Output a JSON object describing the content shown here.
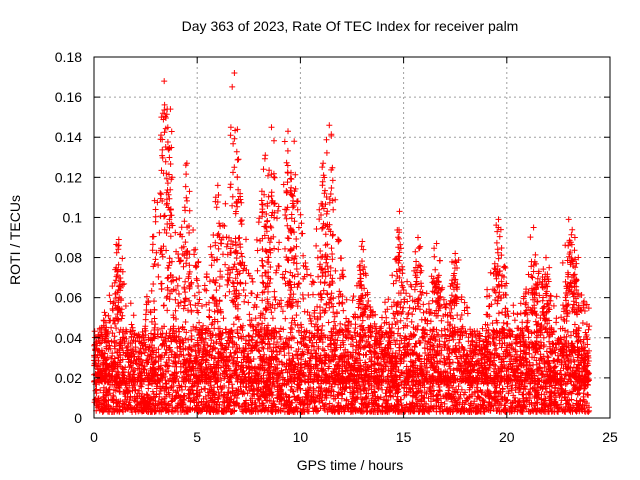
{
  "chart_data": {
    "type": "scatter",
    "title": "Day 363 of 2023, Rate Of TEC Index for receiver palm",
    "xlabel": "GPS time / hours",
    "ylabel": "ROTI / TECUs",
    "xlim": [
      0,
      25
    ],
    "ylim": [
      0,
      0.18
    ],
    "xticks": [
      0,
      5,
      10,
      15,
      20,
      25
    ],
    "xtick_labels": [
      "0",
      "5",
      "10",
      "15",
      "20",
      "25"
    ],
    "yticks": [
      0,
      0.02,
      0.04,
      0.06,
      0.08,
      0.1,
      0.12,
      0.14,
      0.16,
      0.18
    ],
    "ytick_labels": [
      "0",
      "0.02",
      "0.04",
      "0.06",
      "0.08",
      "0.1",
      "0.12",
      "0.14",
      "0.16",
      "0.18"
    ],
    "grid": true,
    "marker": "+",
    "color": "#ff0000",
    "x_data_range": [
      0,
      24
    ],
    "baseline_band": [
      0.003,
      0.045
    ],
    "peaks": [
      {
        "x": 1.2,
        "y": 0.089
      },
      {
        "x": 3.4,
        "y": 0.168
      },
      {
        "x": 3.7,
        "y": 0.154
      },
      {
        "x": 4.5,
        "y": 0.127
      },
      {
        "x": 6.0,
        "y": 0.116
      },
      {
        "x": 6.8,
        "y": 0.172
      },
      {
        "x": 7.0,
        "y": 0.129
      },
      {
        "x": 8.3,
        "y": 0.131
      },
      {
        "x": 8.6,
        "y": 0.145
      },
      {
        "x": 9.4,
        "y": 0.143
      },
      {
        "x": 9.7,
        "y": 0.138
      },
      {
        "x": 11.1,
        "y": 0.127
      },
      {
        "x": 11.4,
        "y": 0.146
      },
      {
        "x": 13.0,
        "y": 0.088
      },
      {
        "x": 14.8,
        "y": 0.103
      },
      {
        "x": 15.7,
        "y": 0.09
      },
      {
        "x": 16.6,
        "y": 0.087
      },
      {
        "x": 17.5,
        "y": 0.082
      },
      {
        "x": 19.6,
        "y": 0.099
      },
      {
        "x": 21.3,
        "y": 0.095
      },
      {
        "x": 21.9,
        "y": 0.08
      },
      {
        "x": 23.0,
        "y": 0.099
      },
      {
        "x": 23.3,
        "y": 0.09
      }
    ]
  }
}
